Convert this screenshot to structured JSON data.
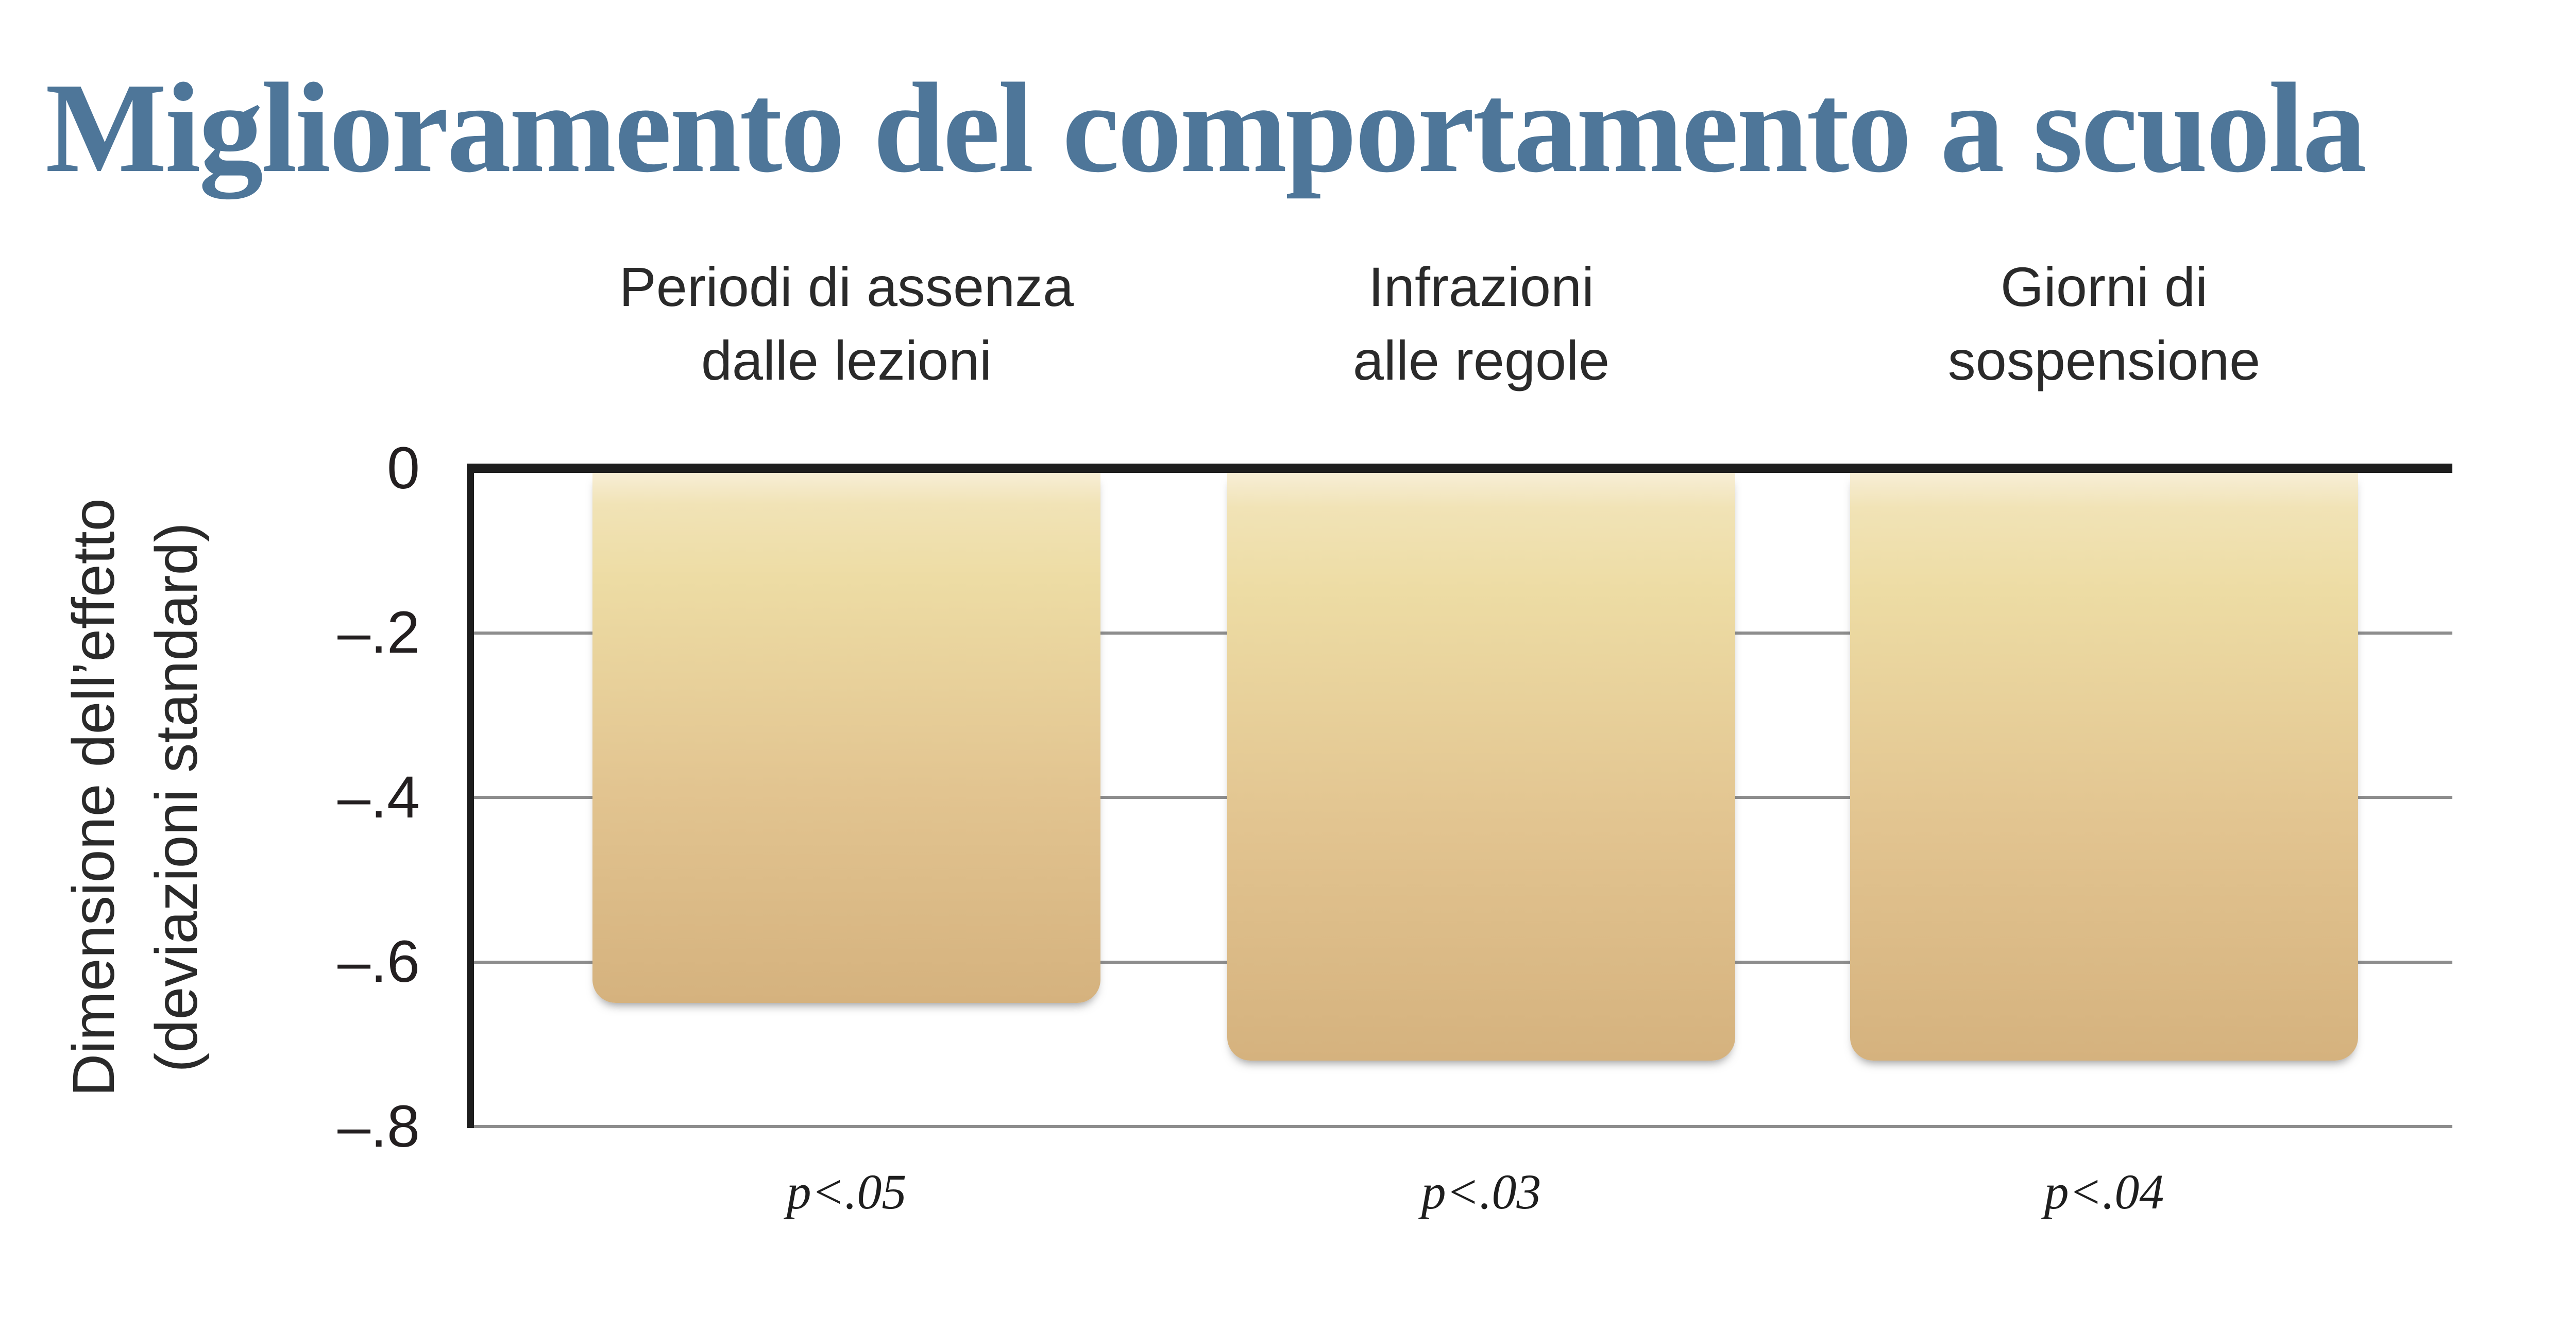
{
  "title": "Miglioramento del comportamento a scuola",
  "chart_data": {
    "type": "bar",
    "title": "Miglioramento del comportamento a scuola",
    "categories": [
      {
        "line1": "Periodi di assenza",
        "line2": "dalle lezioni"
      },
      {
        "line1": "Infrazioni",
        "line2": "alle regole"
      },
      {
        "line1": "Giorni di",
        "line2": "sospensione"
      }
    ],
    "values": [
      -0.65,
      -0.72,
      -0.72
    ],
    "annotations": [
      "p<.05",
      "p<.03",
      "p<.04"
    ],
    "ylabel": {
      "line1": "Dimensione dell’effetto",
      "line2": "(deviazioni standard)"
    },
    "yticks": [
      {
        "label": "0",
        "value": 0
      },
      {
        "label": "–.2",
        "value": -0.2
      },
      {
        "label": "–.4",
        "value": -0.4
      },
      {
        "label": "–.6",
        "value": -0.6
      },
      {
        "label": "–.8",
        "value": -0.8
      }
    ],
    "ylim": [
      -0.8,
      0
    ],
    "xlabel": "",
    "grid": "horizontal, every 0.2, behind bars",
    "legend": "none",
    "colors": {
      "title_text": "#4e7699",
      "bar_gradient_top": "#f7eed6",
      "bar_gradient_bottom": "#d5b27e",
      "gridline": "#8d8d8d",
      "axis": "#1d1d1d",
      "label_text": "#2a2a2a"
    }
  }
}
